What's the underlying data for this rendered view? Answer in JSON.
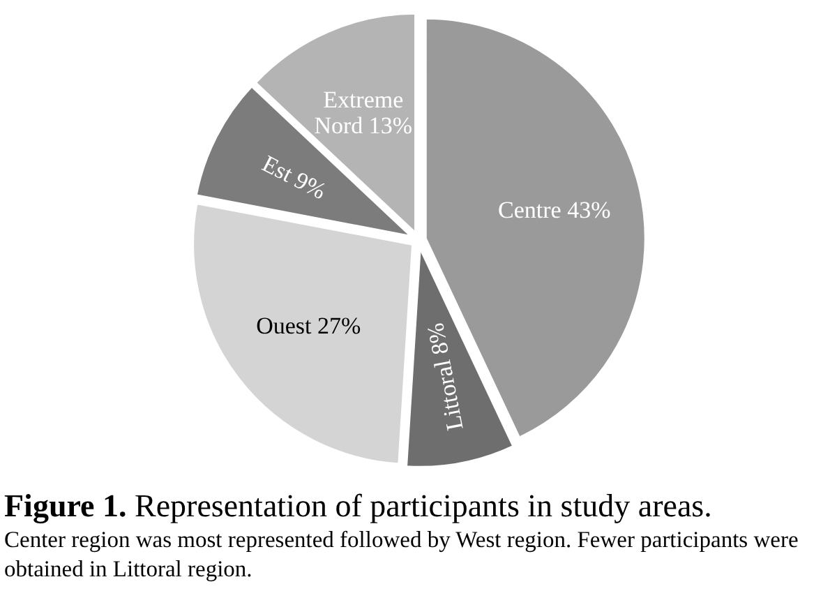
{
  "chart_data": {
    "type": "pie",
    "title": "Figure 1.",
    "subtitle": "Representation of participants in study areas.",
    "annotations": [
      "Center region was most represented followed by West region. Fewer participants were obtained in Littoral region."
    ],
    "categories": [
      "Centre",
      "Littoral",
      "Ouest",
      "Est",
      "Extreme Nord"
    ],
    "values": [
      43,
      8,
      27,
      9,
      13
    ],
    "value_labels": [
      "43%",
      "8%",
      "27%",
      "9%",
      "13%"
    ],
    "colors": [
      "#9a9a9a",
      "#6e6e6e",
      "#d4d4d4",
      "#7c7c7c",
      "#b4b4b4"
    ]
  }
}
